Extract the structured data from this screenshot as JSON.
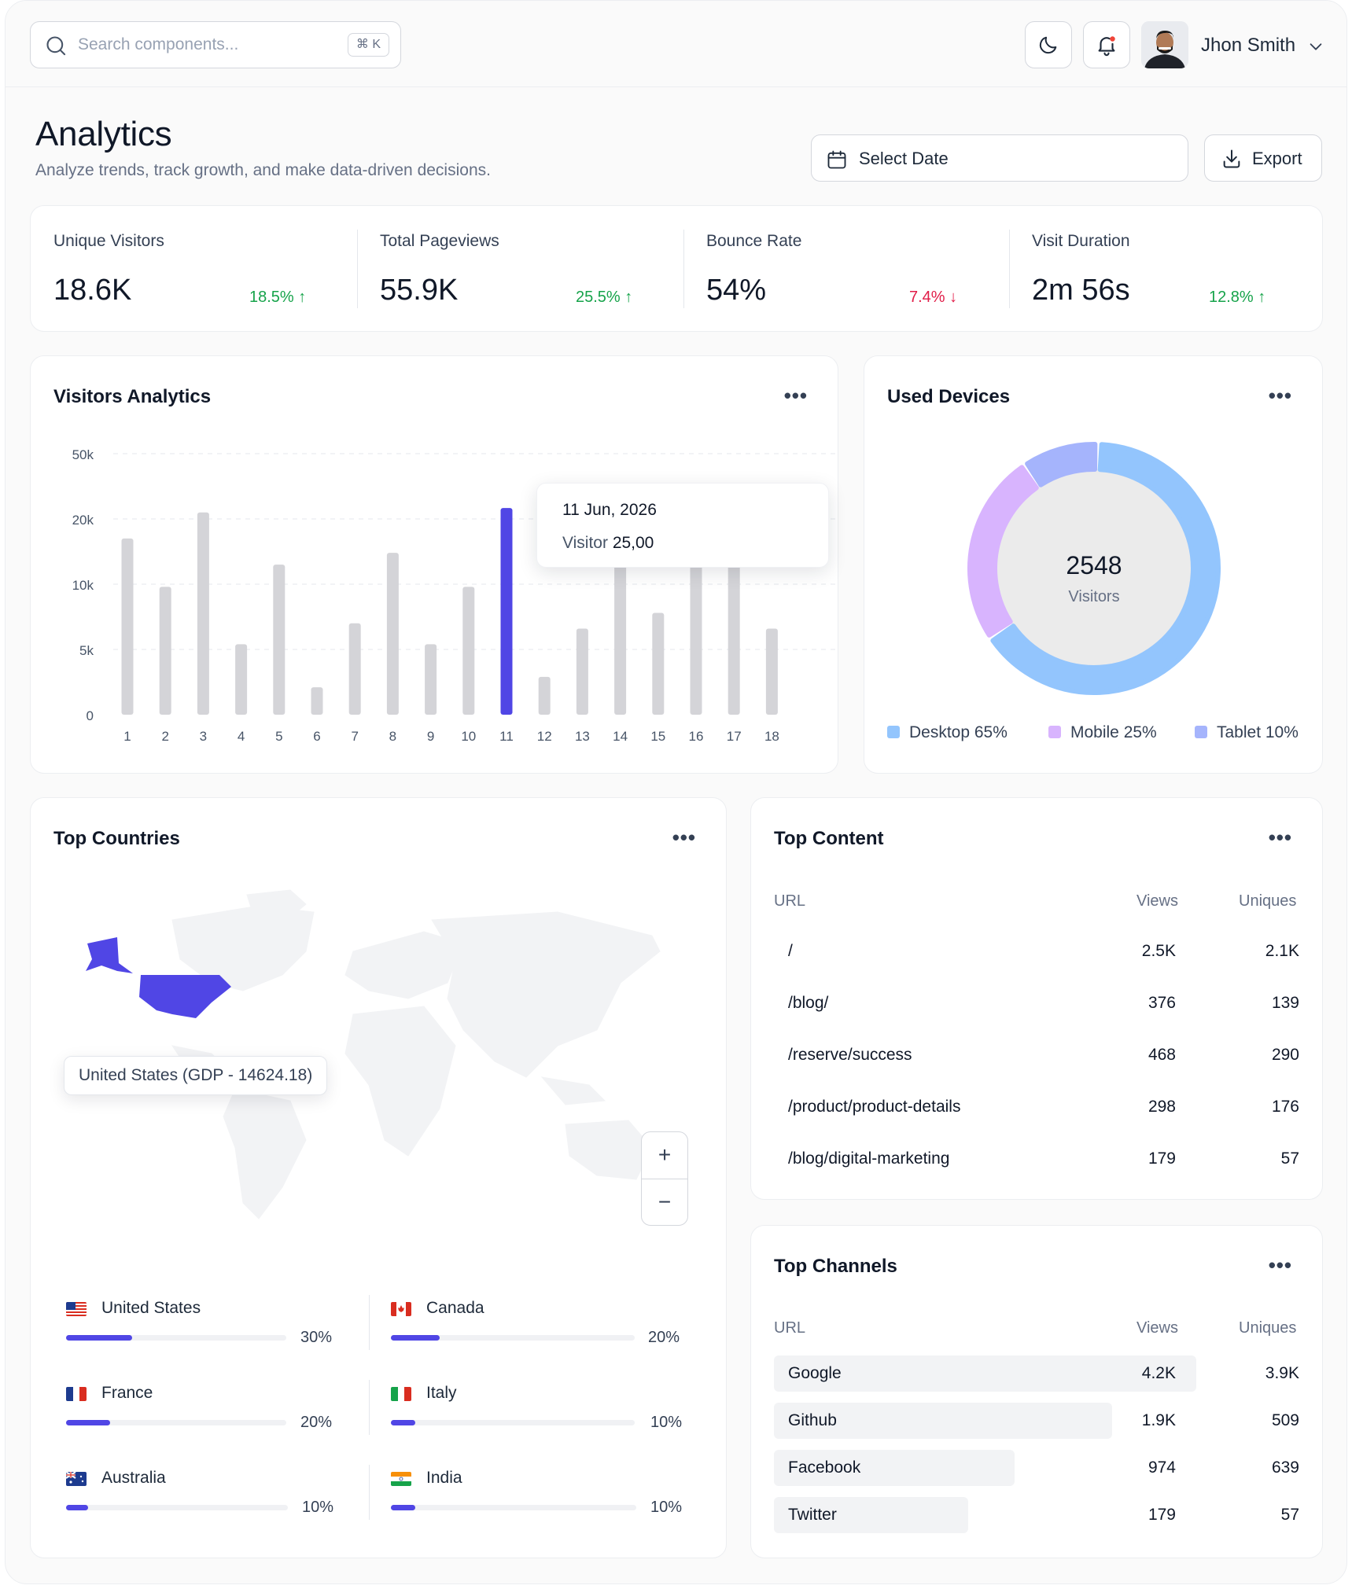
{
  "search": {
    "placeholder": "Search components...",
    "shortcut": "⌘ K"
  },
  "user": {
    "name": "Jhon Smith"
  },
  "header": {
    "title": "Analytics",
    "subtitle": "Analyze trends, track growth, and make data-driven decisions.",
    "date_label": "Select Date",
    "export_label": "Export"
  },
  "stats": [
    {
      "label": "Unique Visitors",
      "value": "18.6K",
      "change": "18.5%",
      "direction": "up"
    },
    {
      "label": "Total Pageviews",
      "value": "55.9K",
      "change": "25.5%",
      "direction": "up"
    },
    {
      "label": "Bounce Rate",
      "value": "54%",
      "change": "7.4%",
      "direction": "down"
    },
    {
      "label": "Visit Duration",
      "value": "2m 56s",
      "change": "12.8%",
      "direction": "up"
    }
  ],
  "visitors": {
    "title": "Visitors Analytics",
    "tooltip": {
      "date": "11 Jun, 2026",
      "label": "Visitor",
      "value": "25,00"
    }
  },
  "chart_data": {
    "type": "bar",
    "categories": [
      "1",
      "2",
      "3",
      "4",
      "5",
      "6",
      "7",
      "8",
      "9",
      "10",
      "11",
      "12",
      "13",
      "14",
      "15",
      "16",
      "17",
      "18"
    ],
    "values": [
      17000,
      9800,
      23000,
      5400,
      13000,
      2100,
      7000,
      14800,
      5400,
      9800,
      25000,
      2900,
      6600,
      19000,
      7800,
      29500,
      19000,
      6600
    ],
    "y_ticks": [
      "0",
      "5k",
      "10k",
      "20k",
      "50k"
    ],
    "highlight_index": 10,
    "colors": {
      "bar": "#d4d4d8",
      "highlight": "#5046e5"
    },
    "grid": true
  },
  "devices": {
    "title": "Used Devices",
    "total": "2548",
    "total_label": "Visitors",
    "segments": [
      {
        "name": "Desktop",
        "share": 65,
        "label": "Desktop 65%",
        "color": "#93c5fd"
      },
      {
        "name": "Mobile",
        "share": 25,
        "label": "Mobile 25%",
        "color": "#d8b4fe"
      },
      {
        "name": "Tablet",
        "share": 10,
        "label": "Tablet 10%",
        "color": "#a5b4fc"
      }
    ]
  },
  "countries": {
    "title": "Top Countries",
    "map_tooltip": "United States (GDP - 14624.18)",
    "zoom_in": "+",
    "zoom_out": "−",
    "items": [
      {
        "name": "United States",
        "pct": "30%",
        "fraction": 0.3
      },
      {
        "name": "Canada",
        "pct": "20%",
        "fraction": 0.2
      },
      {
        "name": "France",
        "pct": "20%",
        "fraction": 0.2
      },
      {
        "name": "Italy",
        "pct": "10%",
        "fraction": 0.1
      },
      {
        "name": "Australia",
        "pct": "10%",
        "fraction": 0.1
      },
      {
        "name": "India",
        "pct": "10%",
        "fraction": 0.1
      }
    ]
  },
  "content": {
    "title": "Top Content",
    "headers": {
      "url": "URL",
      "views": "Views",
      "uniques": "Uniques"
    },
    "rows": [
      {
        "url": "/",
        "views": "2.5K",
        "uniques": "2.1K"
      },
      {
        "url": "/blog/",
        "views": "376",
        "uniques": "139"
      },
      {
        "url": "/reserve/success",
        "views": "468",
        "uniques": "290"
      },
      {
        "url": "/product/product-details",
        "views": "298",
        "uniques": "176"
      },
      {
        "url": "/blog/digital-marketing",
        "views": "179",
        "uniques": "57"
      }
    ]
  },
  "channels": {
    "title": "Top Channels",
    "headers": {
      "url": "URL",
      "views": "Views",
      "uniques": "Uniques"
    },
    "rows": [
      {
        "url": "Google",
        "views": "4.2K",
        "uniques": "3.9K",
        "share": 1.0
      },
      {
        "url": "Github",
        "views": "1.9K",
        "uniques": "509",
        "share": 0.8
      },
      {
        "url": "Facebook",
        "views": "974",
        "uniques": "639",
        "share": 0.57
      },
      {
        "url": "Twitter",
        "views": "179",
        "uniques": "57",
        "share": 0.46
      }
    ]
  }
}
